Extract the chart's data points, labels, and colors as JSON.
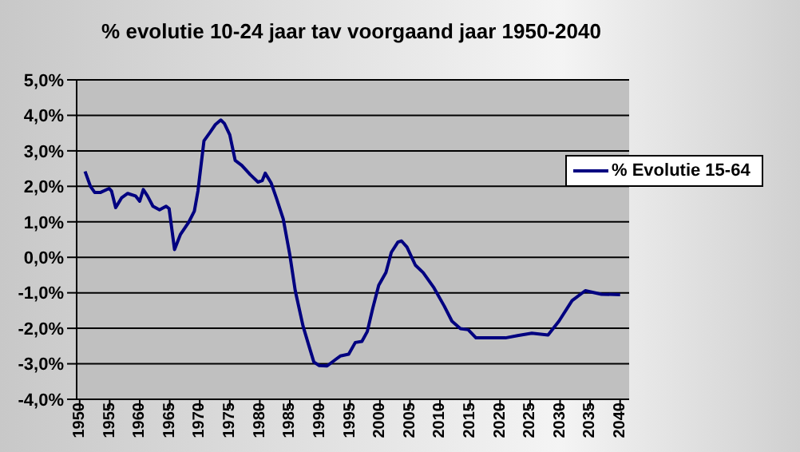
{
  "chart_data": {
    "type": "line",
    "title": "% evolutie 10-24 jaar tav voorgaand jaar 1950-2040",
    "x": [
      1950.9,
      1951.8,
      1952.5,
      1953.5,
      1954.9,
      1955.3,
      1956,
      1957,
      1958,
      1959.3,
      1960,
      1960.6,
      1961.3,
      1962.2,
      1963.3,
      1964.4,
      1964.9,
      1965.8,
      1966.8,
      1968.2,
      1969.1,
      1969.7,
      1970.7,
      1971.7,
      1972.6,
      1973.5,
      1974.1,
      1975,
      1975.9,
      1977,
      1978.4,
      1979.7,
      1980.4,
      1980.9,
      1981.9,
      1982.8,
      1983.9,
      1985,
      1985.9,
      1987.2,
      1988.1,
      1989,
      1989.9,
      1991.2,
      1992.6,
      1993.4,
      1994.8,
      1995.9,
      1997,
      1997.9,
      1998.8,
      1999.8,
      2001,
      2001.9,
      2003,
      2003.6,
      2004.5,
      2005.9,
      2007.2,
      2009,
      2010.7,
      2012,
      2013.4,
      2014.7,
      2016,
      2018.3,
      2020.9,
      2023.1,
      2025.3,
      2028,
      2029.8,
      2032,
      2034.2,
      2036.9,
      2040
    ],
    "series": [
      {
        "name": "% Evolutie 15-64",
        "color": "#000080",
        "values": [
          2.42,
          2.0,
          1.83,
          1.83,
          1.94,
          1.87,
          1.4,
          1.68,
          1.8,
          1.73,
          1.58,
          1.91,
          1.73,
          1.44,
          1.34,
          1.44,
          1.37,
          0.22,
          0.65,
          1.0,
          1.3,
          1.87,
          3.28,
          3.52,
          3.74,
          3.87,
          3.77,
          3.45,
          2.73,
          2.59,
          2.33,
          2.12,
          2.16,
          2.37,
          2.09,
          1.65,
          1.08,
          0.07,
          -0.94,
          -1.94,
          -2.45,
          -2.95,
          -3.05,
          -3.06,
          -2.88,
          -2.78,
          -2.73,
          -2.4,
          -2.37,
          -2.09,
          -1.44,
          -0.79,
          -0.43,
          0.14,
          0.43,
          0.46,
          0.29,
          -0.22,
          -0.43,
          -0.86,
          -1.37,
          -1.8,
          -2.01,
          -2.04,
          -2.27,
          -2.27,
          -2.27,
          -2.2,
          -2.14,
          -2.19,
          -1.8,
          -1.22,
          -0.94,
          -1.04,
          -1.05
        ]
      }
    ],
    "xlim": [
      1949.5,
      2041.5
    ],
    "xticks": [
      1950,
      1955,
      1960,
      1965,
      1970,
      1975,
      1980,
      1985,
      1990,
      1995,
      2000,
      2005,
      2010,
      2015,
      2020,
      2025,
      2030,
      2035,
      2040
    ],
    "ylim": [
      -4,
      5
    ],
    "yticks": [
      {
        "value": -4,
        "label": "-4,0%"
      },
      {
        "value": -3,
        "label": "-3,0%"
      },
      {
        "value": -2,
        "label": "-2,0%"
      },
      {
        "value": -1,
        "label": "-1,0%"
      },
      {
        "value": 0,
        "label": "0,0%"
      },
      {
        "value": 1,
        "label": "1,0%"
      },
      {
        "value": 2,
        "label": "2,0%"
      },
      {
        "value": 3,
        "label": "3,0%"
      },
      {
        "value": 4,
        "label": "4,0%"
      },
      {
        "value": 5,
        "label": "5,0%"
      }
    ],
    "grid": "y",
    "legend": "right",
    "marker": "none",
    "line_style": "solid"
  }
}
